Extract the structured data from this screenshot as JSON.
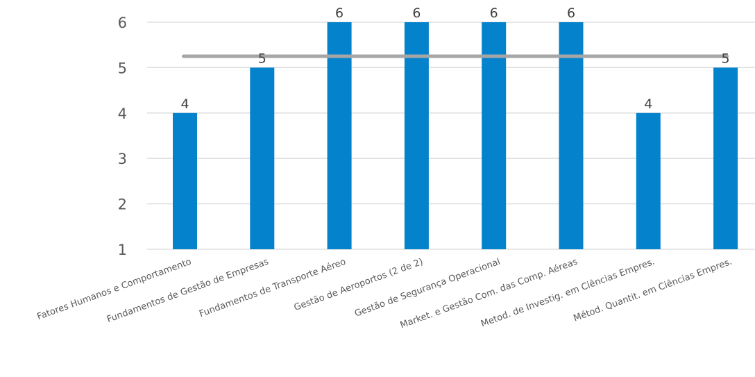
{
  "chart_data": {
    "type": "bar",
    "categories": [
      "Fatores Humanos e Comportamento",
      "Fundamentos de Gestão de Empresas",
      "Fundamentos de Transporte Aéreo",
      "Gestão de Aeroportos (2 de 2)",
      "Gestão de Segurança Operacional",
      "Market. e Gestão Com. das Comp. Aéreas",
      "Metod. de Investig. em Ciências Empres.",
      "Métod. Quantit. em Ciências Empres."
    ],
    "values": [
      4,
      5,
      6,
      6,
      6,
      6,
      4,
      5
    ],
    "data_labels": [
      "4",
      "5",
      "6",
      "6",
      "6",
      "6",
      "4",
      "5"
    ],
    "reference_line": 5.25,
    "ylim": [
      1,
      6
    ],
    "yticks": [
      "1",
      "2",
      "3",
      "4",
      "5",
      "6"
    ],
    "grid": true,
    "colors": {
      "bar": "#0482CC",
      "reference_line": "#A6A6A6",
      "grid": "#D9D9D9"
    }
  }
}
